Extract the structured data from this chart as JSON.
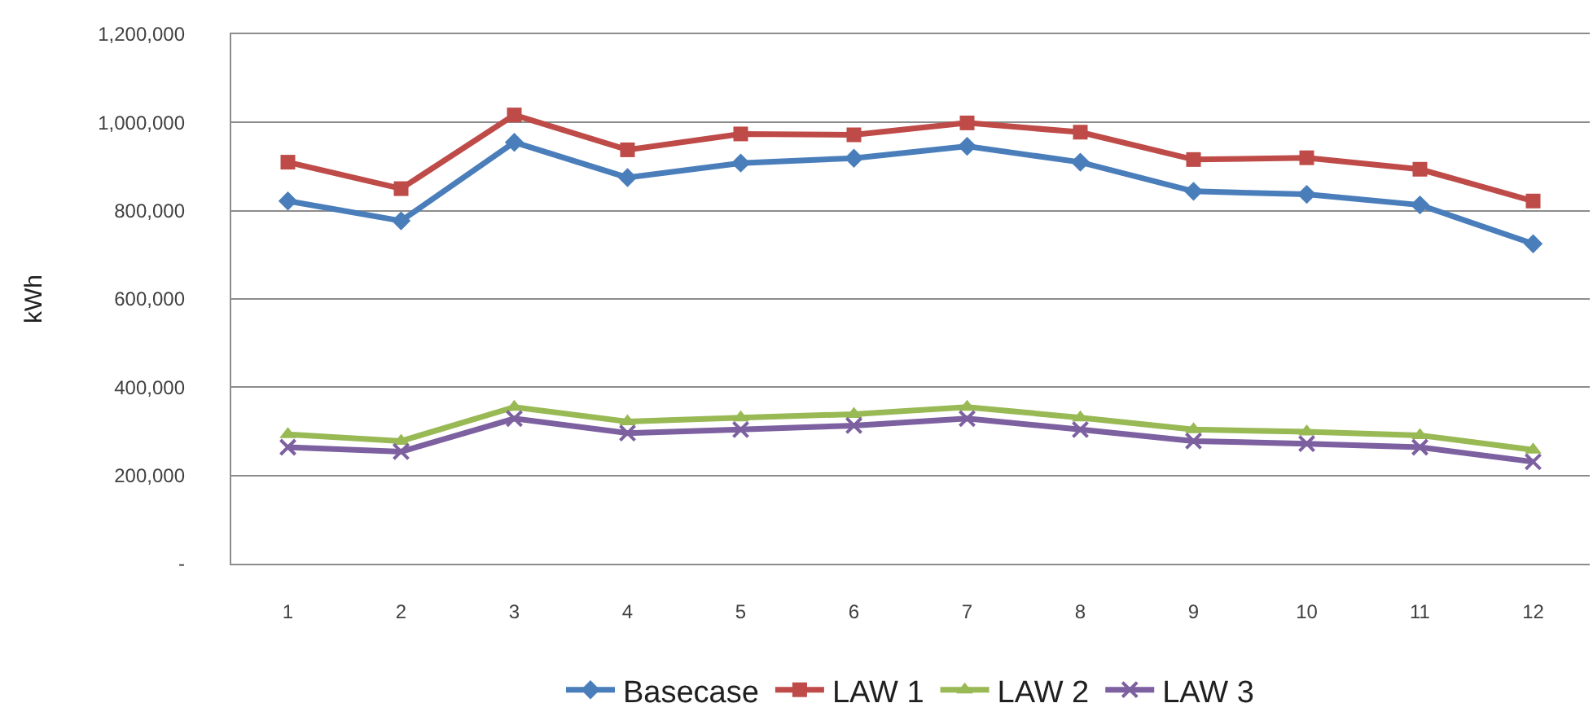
{
  "chart_data": {
    "type": "line",
    "ylabel": "kWh",
    "x": [
      1,
      2,
      3,
      4,
      5,
      6,
      7,
      8,
      9,
      10,
      11,
      12
    ],
    "xlim": [
      0.5,
      12.5
    ],
    "xticks": [
      1,
      2,
      3,
      4,
      5,
      6,
      7,
      8,
      9,
      10,
      11,
      12
    ],
    "series": [
      {
        "name": "Basecase",
        "color": "#4a7ebb",
        "marker": "diamond",
        "values": [
          822000,
          777000,
          955000,
          875000,
          908000,
          919000,
          946000,
          910000,
          844000,
          837000,
          813000,
          725000
        ]
      },
      {
        "name": "LAW 1",
        "color": "#be4b48",
        "marker": "square",
        "values": [
          910000,
          850000,
          1017000,
          938000,
          974000,
          972000,
          999000,
          978000,
          916000,
          920000,
          894000,
          822000
        ]
      },
      {
        "name": "LAW 2",
        "color": "#98b954",
        "marker": "triangle",
        "values": [
          293000,
          278000,
          355000,
          322000,
          331000,
          339000,
          355000,
          331000,
          304000,
          299000,
          291000,
          258000
        ]
      },
      {
        "name": "LAW 3",
        "color": "#7d60a0",
        "marker": "cross",
        "values": [
          264000,
          254000,
          329000,
          296000,
          304000,
          313000,
          329000,
          304000,
          278000,
          272000,
          264000,
          231000
        ]
      }
    ],
    "ylim": [
      0,
      1200000
    ],
    "yticks": [
      {
        "value": 0,
        "label": "-"
      },
      {
        "value": 200000,
        "label": "200,000"
      },
      {
        "value": 400000,
        "label": "400,000"
      },
      {
        "value": 600000,
        "label": "600,000"
      },
      {
        "value": 800000,
        "label": "800,000"
      },
      {
        "value": 1000000,
        "label": "1,000,000"
      },
      {
        "value": 1200000,
        "label": "1,200,000"
      }
    ],
    "grid": "y",
    "legend": "bottom",
    "line_style": "solid"
  }
}
